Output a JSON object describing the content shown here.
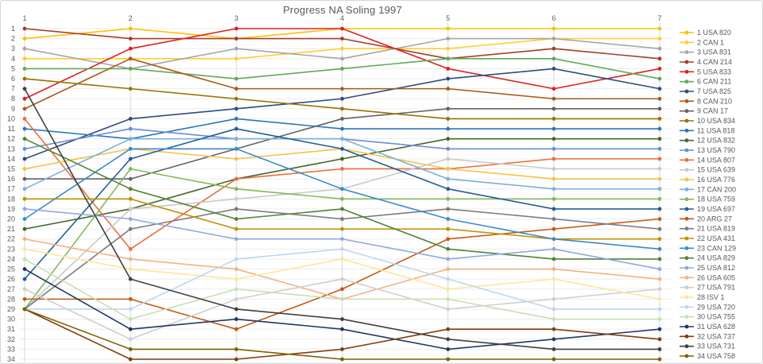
{
  "title": "Progress NA Soling 1997",
  "chart_data": {
    "type": "line",
    "subtype": "bump-rank-progression",
    "title": "Progress NA Soling 1997",
    "xlabel": "",
    "ylabel": "",
    "x": [
      1,
      2,
      3,
      4,
      5,
      6,
      7
    ],
    "x_tick_labels": [
      "1",
      "2",
      "3",
      "4",
      "5",
      "6",
      "7"
    ],
    "y_tick_labels": [
      "1",
      "2",
      "3",
      "4",
      "5",
      "6",
      "7",
      "8",
      "9",
      "10",
      "11",
      "12",
      "13",
      "14",
      "15",
      "16",
      "17",
      "18",
      "19",
      "20",
      "21",
      "22",
      "23",
      "24",
      "25",
      "26",
      "27",
      "28",
      "29",
      "30",
      "31",
      "32",
      "33",
      "34"
    ],
    "y_range": [
      1,
      34
    ],
    "y_inverted": true,
    "grid": true,
    "legend_position": "right",
    "series": [
      {
        "name": "1 USA 820",
        "color": "#FFC000",
        "ranks": [
          2,
          1,
          2,
          1,
          1,
          1,
          1
        ]
      },
      {
        "name": "2 CAN 1",
        "color": "#FFCE33",
        "ranks": [
          4,
          4,
          4,
          3,
          3,
          2,
          2
        ]
      },
      {
        "name": "3 USA 831",
        "color": "#A6A6A6",
        "ranks": [
          3,
          5,
          3,
          4,
          2,
          2,
          3
        ]
      },
      {
        "name": "4 CAN 214",
        "color": "#A43E28",
        "ranks": [
          1,
          2,
          2,
          2,
          4,
          3,
          4
        ]
      },
      {
        "name": "5 USA 833",
        "color": "#E02020",
        "ranks": [
          8,
          3,
          1,
          1,
          5,
          7,
          5
        ]
      },
      {
        "name": "6 CAN 211",
        "color": "#62A955",
        "ranks": [
          5,
          5,
          6,
          5,
          4,
          4,
          6
        ]
      },
      {
        "name": "7 USA 825",
        "color": "#2E4D7B",
        "ranks": [
          14,
          10,
          9,
          8,
          6,
          5,
          7
        ]
      },
      {
        "name": "8 CAN 210",
        "color": "#A85A18",
        "ranks": [
          9,
          4,
          7,
          7,
          7,
          8,
          8
        ]
      },
      {
        "name": "9 CAN 17",
        "color": "#636363",
        "ranks": [
          16,
          16,
          13,
          10,
          9,
          9,
          9
        ]
      },
      {
        "name": "10 USA 834",
        "color": "#997300",
        "ranks": [
          6,
          7,
          8,
          9,
          10,
          10,
          10
        ]
      },
      {
        "name": "11 USA 818",
        "color": "#2E75B6",
        "ranks": [
          11,
          12,
          10,
          11,
          11,
          11,
          11
        ]
      },
      {
        "name": "12 USA 832",
        "color": "#43682B",
        "ranks": [
          21,
          19,
          16,
          14,
          12,
          12,
          12
        ]
      },
      {
        "name": "13 USA 790",
        "color": "#698ED0",
        "ranks": [
          13,
          11,
          12,
          12,
          13,
          13,
          13
        ]
      },
      {
        "name": "14 USA 807",
        "color": "#E8703A",
        "ranks": [
          10,
          23,
          16,
          15,
          15,
          14,
          14
        ]
      },
      {
        "name": "15 USA 639",
        "color": "#C9C9C9",
        "ranks": [
          29,
          19,
          18,
          17,
          14,
          15,
          15
        ]
      },
      {
        "name": "16 USA 776",
        "color": "#F5C242",
        "ranks": [
          15,
          13,
          14,
          13,
          15,
          16,
          16
        ]
      },
      {
        "name": "17 CAN 200",
        "color": "#7CAFDD",
        "ranks": [
          17,
          12,
          12,
          12,
          16,
          17,
          17
        ]
      },
      {
        "name": "18 USA 759",
        "color": "#84B85C",
        "ranks": [
          29,
          15,
          17,
          18,
          18,
          18,
          18
        ]
      },
      {
        "name": "19 USA 697",
        "color": "#255E91",
        "ranks": [
          26,
          14,
          11,
          13,
          17,
          19,
          19
        ]
      },
      {
        "name": "20 ARG 27",
        "color": "#C55A11",
        "ranks": [
          28,
          28,
          31,
          27,
          22,
          21,
          20
        ]
      },
      {
        "name": "21 USA 819",
        "color": "#7B7B7B",
        "ranks": [
          29,
          21,
          19,
          20,
          19,
          20,
          21
        ]
      },
      {
        "name": "22 USA 431",
        "color": "#BF9000",
        "ranks": [
          18,
          18,
          21,
          21,
          21,
          22,
          22
        ]
      },
      {
        "name": "23 CAN 129",
        "color": "#3B8BC8",
        "ranks": [
          20,
          13,
          13,
          17,
          20,
          22,
          23
        ]
      },
      {
        "name": "24 USA 829",
        "color": "#548235",
        "ranks": [
          12,
          17,
          20,
          19,
          23,
          24,
          24
        ]
      },
      {
        "name": "25 USA 812",
        "color": "#8FAADC",
        "ranks": [
          19,
          20,
          22,
          22,
          24,
          23,
          25
        ]
      },
      {
        "name": "26 USA 605",
        "color": "#F4B183",
        "ranks": [
          22,
          24,
          25,
          28,
          25,
          25,
          26
        ]
      },
      {
        "name": "27 USA 791",
        "color": "#D0CECE",
        "ranks": [
          27,
          32,
          28,
          26,
          29,
          28,
          27
        ]
      },
      {
        "name": "28 ISV 1",
        "color": "#FFE699",
        "ranks": [
          23,
          25,
          26,
          24,
          27,
          26,
          28
        ]
      },
      {
        "name": "29 USA 720",
        "color": "#BDD7EE",
        "ranks": [
          29,
          29,
          24,
          23,
          26,
          29,
          29
        ]
      },
      {
        "name": "30 USA 755",
        "color": "#C5E0B4",
        "ranks": [
          24,
          30,
          27,
          28,
          28,
          30,
          30
        ]
      },
      {
        "name": "31 USA 628",
        "color": "#203864",
        "ranks": [
          25,
          31,
          30,
          31,
          33,
          32,
          31
        ]
      },
      {
        "name": "32 USA 737",
        "color": "#843C0C",
        "ranks": [
          29,
          34,
          34,
          33,
          31,
          31,
          32
        ]
      },
      {
        "name": "33 USA 731",
        "color": "#404040",
        "ranks": [
          7,
          26,
          29,
          30,
          32,
          33,
          33
        ]
      },
      {
        "name": "34 USA 758",
        "color": "#806000",
        "ranks": [
          29,
          33,
          33,
          34,
          34,
          34,
          34
        ]
      }
    ]
  },
  "style": {
    "title_color": "#595959",
    "axis_text_color": "#595959",
    "legend_text_color": "#595959",
    "h_grid_color": "#ECECEC",
    "v_grid_color": "#D9D9D9",
    "background": "#FFFFFF"
  }
}
